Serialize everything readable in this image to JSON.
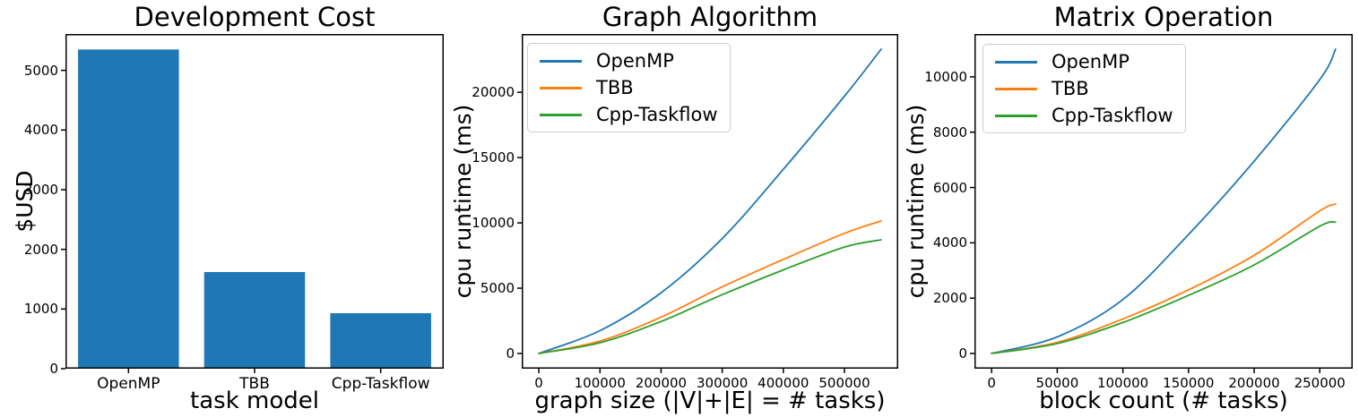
{
  "figure": {
    "background": "#ffffff",
    "axis_color": "#000000",
    "legend_border_color": "#cccccc"
  },
  "colors": {
    "openmp": "#1f77b4",
    "tbb": "#ff7f0e",
    "cpp_taskflow": "#2ca02c",
    "bar": "#1f77b4"
  },
  "chart_data": [
    {
      "type": "bar",
      "title": "Development Cost",
      "xlabel": "task model",
      "ylabel": "$USD",
      "categories": [
        "OpenMP",
        "TBB",
        "Cpp-Taskflow"
      ],
      "values": [
        5350,
        1620,
        930
      ],
      "yticks": [
        0,
        1000,
        2000,
        3000,
        4000,
        5000
      ],
      "ylim": [
        0,
        5610
      ],
      "bar_color": "#1f77b4",
      "grid": false,
      "legend": null
    },
    {
      "type": "line",
      "title": "Graph Algorithm",
      "xlabel": "graph size (|V|+|E| = # tasks)",
      "ylabel": "cpu runtime (ms)",
      "x": [
        0,
        100000,
        200000,
        300000,
        400000,
        500000,
        560000
      ],
      "series": [
        {
          "name": "OpenMP",
          "color": "#1f77b4",
          "values": [
            0,
            1750,
            4650,
            8800,
            14100,
            19700,
            23300
          ]
        },
        {
          "name": "TBB",
          "color": "#ff7f0e",
          "values": [
            0,
            950,
            2780,
            5100,
            7200,
            9200,
            10150
          ]
        },
        {
          "name": "Cpp-Taskflow",
          "color": "#2ca02c",
          "values": [
            0,
            820,
            2450,
            4500,
            6400,
            8150,
            8700
          ]
        }
      ],
      "xticks": [
        0,
        100000,
        200000,
        300000,
        400000,
        500000
      ],
      "yticks": [
        0,
        5000,
        10000,
        15000,
        20000
      ],
      "xlim": [
        -28000,
        588000
      ],
      "ylim": [
        -1165,
        24465
      ],
      "grid": false,
      "legend_position": "upper left"
    },
    {
      "type": "line",
      "title": "Matrix Operation",
      "xlabel": "block count (# tasks)",
      "ylabel": "cpu runtime (ms)",
      "x": [
        0,
        50000,
        100000,
        150000,
        200000,
        250000,
        262000
      ],
      "series": [
        {
          "name": "OpenMP",
          "color": "#1f77b4",
          "values": [
            0,
            600,
            1950,
            4300,
            6950,
            9900,
            11000
          ]
        },
        {
          "name": "TBB",
          "color": "#ff7f0e",
          "values": [
            0,
            400,
            1250,
            2300,
            3550,
            5150,
            5400
          ]
        },
        {
          "name": "Cpp-Taskflow",
          "color": "#2ca02c",
          "values": [
            0,
            360,
            1120,
            2100,
            3200,
            4600,
            4750
          ]
        }
      ],
      "xticks": [
        0,
        50000,
        100000,
        150000,
        200000,
        250000
      ],
      "yticks": [
        0,
        2000,
        4000,
        6000,
        8000,
        10000
      ],
      "xlim": [
        -13100,
        275100
      ],
      "ylim": [
        -550,
        11550
      ],
      "grid": false,
      "legend_position": "upper left"
    }
  ]
}
